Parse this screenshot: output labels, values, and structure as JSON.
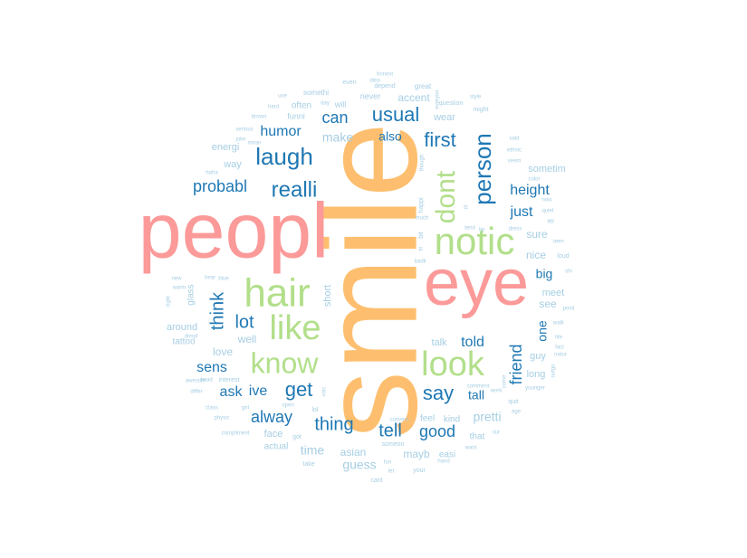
{
  "palette": {
    "orange": "#fdbf6f",
    "pink": "#fb9a99",
    "green": "#b2df8a",
    "blue": "#1f78b4",
    "lightblue": "#a6cee3"
  },
  "words": [
    {
      "text": "smile",
      "color": "orange"
    },
    {
      "text": "peopl",
      "color": "pink"
    },
    {
      "text": "eye",
      "color": "pink"
    },
    {
      "text": "hair",
      "color": "green"
    },
    {
      "text": "notic",
      "color": "green"
    },
    {
      "text": "look",
      "color": "green"
    },
    {
      "text": "like",
      "color": "green"
    },
    {
      "text": "know",
      "color": "green"
    },
    {
      "text": "dont",
      "color": "green"
    },
    {
      "text": "laugh",
      "color": "blue"
    },
    {
      "text": "realli",
      "color": "blue"
    },
    {
      "text": "person",
      "color": "blue"
    },
    {
      "text": "first",
      "color": "blue"
    },
    {
      "text": "usual",
      "color": "blue"
    },
    {
      "text": "can",
      "color": "blue"
    },
    {
      "text": "humor",
      "color": "blue"
    },
    {
      "text": "probabl",
      "color": "blue"
    },
    {
      "text": "think",
      "color": "blue"
    },
    {
      "text": "lot",
      "color": "blue"
    },
    {
      "text": "get",
      "color": "blue"
    },
    {
      "text": "say",
      "color": "blue"
    },
    {
      "text": "thing",
      "color": "blue"
    },
    {
      "text": "tell",
      "color": "blue"
    },
    {
      "text": "good",
      "color": "blue"
    },
    {
      "text": "alway",
      "color": "blue"
    },
    {
      "text": "sens",
      "color": "blue"
    },
    {
      "text": "ask",
      "color": "blue"
    },
    {
      "text": "ive",
      "color": "blue"
    },
    {
      "text": "height",
      "color": "blue"
    },
    {
      "text": "just",
      "color": "blue"
    },
    {
      "text": "friend",
      "color": "blue"
    },
    {
      "text": "told",
      "color": "blue"
    },
    {
      "text": "tall",
      "color": "blue"
    },
    {
      "text": "also",
      "color": "blue"
    },
    {
      "text": "big",
      "color": "blue"
    },
    {
      "text": "one",
      "color": "blue"
    },
    {
      "text": "make",
      "color": "lightblue"
    },
    {
      "text": "pretti",
      "color": "lightblue"
    },
    {
      "text": "guess",
      "color": "lightblue"
    },
    {
      "text": "time",
      "color": "lightblue"
    },
    {
      "text": "mayb",
      "color": "lightblue"
    },
    {
      "text": "asian",
      "color": "lightblue"
    },
    {
      "text": "sure",
      "color": "lightblue"
    },
    {
      "text": "nice",
      "color": "lightblue"
    },
    {
      "text": "see",
      "color": "lightblue"
    },
    {
      "text": "meet",
      "color": "lightblue"
    },
    {
      "text": "guy",
      "color": "lightblue"
    },
    {
      "text": "long",
      "color": "lightblue"
    },
    {
      "text": "sometim",
      "color": "lightblue"
    },
    {
      "text": "love",
      "color": "lightblue"
    },
    {
      "text": "well",
      "color": "lightblue"
    },
    {
      "text": "around",
      "color": "lightblue"
    },
    {
      "text": "talk",
      "color": "lightblue"
    },
    {
      "text": "wear",
      "color": "lightblue"
    },
    {
      "text": "accent",
      "color": "lightblue"
    },
    {
      "text": "way",
      "color": "lightblue"
    },
    {
      "text": "energi",
      "color": "lightblue"
    },
    {
      "text": "short",
      "color": "lightblue"
    },
    {
      "text": "face",
      "color": "lightblue"
    },
    {
      "text": "actual",
      "color": "lightblue"
    },
    {
      "text": "kind",
      "color": "lightblue"
    },
    {
      "text": "feel",
      "color": "lightblue"
    },
    {
      "text": "that",
      "color": "lightblue"
    },
    {
      "text": "easi",
      "color": "lightblue"
    },
    {
      "text": "glass",
      "color": "lightblue"
    },
    {
      "text": "tattoo",
      "color": "lightblue"
    },
    {
      "text": "often",
      "color": "lightblue"
    },
    {
      "text": "will",
      "color": "lightblue"
    },
    {
      "text": "never",
      "color": "lightblue"
    },
    {
      "text": "funni",
      "color": "lightblue"
    },
    {
      "text": "somethi",
      "color": "lightblue"
    },
    {
      "text": "great",
      "color": "lightblue"
    },
    {
      "text": "depend",
      "color": "lightblue"
    },
    {
      "text": "even",
      "color": "lightblue"
    },
    {
      "text": "idea",
      "color": "lightblue"
    },
    {
      "text": "honest",
      "color": "lightblue"
    },
    {
      "text": "might",
      "color": "lightblue"
    },
    {
      "text": "question",
      "color": "lightblue"
    },
    {
      "text": "style",
      "color": "lightblue"
    },
    {
      "text": "everyon",
      "color": "lightblue"
    },
    {
      "text": "day",
      "color": "lightblue"
    },
    {
      "text": "use",
      "color": "lightblue"
    },
    {
      "text": "hard",
      "color": "lightblue"
    },
    {
      "text": "brown",
      "color": "lightblue"
    },
    {
      "text": "serious",
      "color": "lightblue"
    },
    {
      "text": "joke",
      "color": "lightblue"
    },
    {
      "text": "mean",
      "color": "lightblue"
    },
    {
      "text": "haha",
      "color": "lightblue"
    },
    {
      "text": "said",
      "color": "lightblue"
    },
    {
      "text": "ethnic",
      "color": "lightblue"
    },
    {
      "text": "seem",
      "color": "lightblue"
    },
    {
      "text": "color",
      "color": "lightblue"
    },
    {
      "text": "though",
      "color": "lightblue"
    },
    {
      "text": "happi",
      "color": "lightblue"
    },
    {
      "text": "much",
      "color": "lightblue"
    },
    {
      "text": "bit",
      "color": "lightblue"
    },
    {
      "text": "tri",
      "color": "lightblue"
    },
    {
      "text": "badli",
      "color": "lightblue"
    },
    {
      "text": "ill",
      "color": "lightblue"
    },
    {
      "text": "lip",
      "color": "lightblue"
    },
    {
      "text": "tend",
      "color": "lightblue"
    },
    {
      "text": "dress",
      "color": "lightblue"
    },
    {
      "text": "littl",
      "color": "lightblue"
    },
    {
      "text": "quiet",
      "color": "lightblue"
    },
    {
      "text": "now",
      "color": "lightblue"
    },
    {
      "text": "teen",
      "color": "lightblue"
    },
    {
      "text": "loud",
      "color": "lightblue"
    },
    {
      "text": "shi",
      "color": "lightblue"
    },
    {
      "text": "posit",
      "color": "lightblue"
    },
    {
      "text": "walk",
      "color": "lightblue"
    },
    {
      "text": "life",
      "color": "lightblue"
    },
    {
      "text": "fact",
      "color": "lightblue"
    },
    {
      "text": "natur",
      "color": "lightblue"
    },
    {
      "text": "outgo",
      "color": "lightblue"
    },
    {
      "text": "younger",
      "color": "lightblue"
    },
    {
      "text": "age",
      "color": "lightblue"
    },
    {
      "text": "quit",
      "color": "lightblue"
    },
    {
      "text": "come",
      "color": "lightblue"
    },
    {
      "text": "comment",
      "color": "lightblue"
    },
    {
      "text": "work",
      "color": "lightblue"
    },
    {
      "text": "cur",
      "color": "lightblue"
    },
    {
      "text": "want",
      "color": "lightblue"
    },
    {
      "text": "hand",
      "color": "lightblue"
    },
    {
      "text": "your",
      "color": "lightblue"
    },
    {
      "text": "someon",
      "color": "lightblue"
    },
    {
      "text": "fun",
      "color": "lightblue"
    },
    {
      "text": "let",
      "color": "lightblue"
    },
    {
      "text": "cant",
      "color": "lightblue"
    },
    {
      "text": "convers",
      "color": "lightblue"
    },
    {
      "text": "take",
      "color": "lightblue"
    },
    {
      "text": "got",
      "color": "lightblue"
    },
    {
      "text": "lol",
      "color": "lightblue"
    },
    {
      "text": "voic",
      "color": "lightblue"
    },
    {
      "text": "open",
      "color": "lightblue"
    },
    {
      "text": "interest",
      "color": "lightblue"
    },
    {
      "text": "head",
      "color": "lightblue"
    },
    {
      "text": "class",
      "color": "lightblue"
    },
    {
      "text": "girl",
      "color": "lightblue"
    },
    {
      "text": "differ",
      "color": "lightblue"
    },
    {
      "text": "physic",
      "color": "lightblue"
    },
    {
      "text": "compliment",
      "color": "lightblue"
    },
    {
      "text": "awesom",
      "color": "lightblue"
    },
    {
      "text": "dimpl",
      "color": "lightblue"
    },
    {
      "text": "right",
      "color": "lightblue"
    },
    {
      "text": "warm",
      "color": "lightblue"
    },
    {
      "text": "new",
      "color": "lightblue"
    },
    {
      "text": "hear",
      "color": "lightblue"
    },
    {
      "text": "blue",
      "color": "lightblue"
    },
    {
      "text": "find",
      "color": "lightblue"
    }
  ]
}
